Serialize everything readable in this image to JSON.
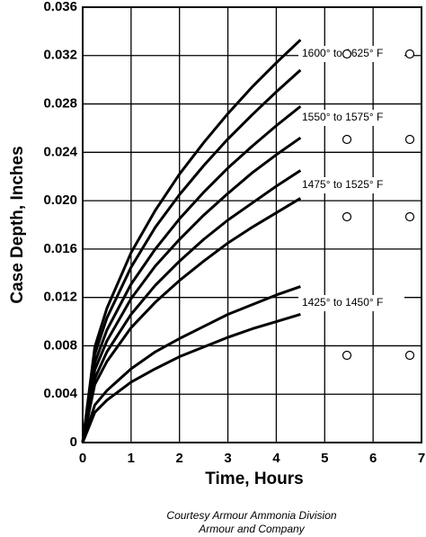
{
  "chart_data": {
    "type": "line",
    "x_label": "Time, Hours",
    "y_label": "Case Depth, Inches",
    "x": [
      0,
      0.25,
      0.5,
      1,
      1.5,
      2,
      2.5,
      3,
      3.5,
      4,
      4.5
    ],
    "series": [
      {
        "color": "#000000",
        "values": [
          0,
          0.0079,
          0.0111,
          0.0157,
          0.0192,
          0.0222,
          0.0248,
          0.0272,
          0.0294,
          0.0314,
          0.0333
        ]
      },
      {
        "color": "#000000",
        "values": [
          0,
          0.0073,
          0.0103,
          0.0145,
          0.0178,
          0.0205,
          0.0229,
          0.0251,
          0.0271,
          0.029,
          0.0308
        ]
      },
      {
        "color": "#000000",
        "values": [
          0,
          0.0066,
          0.0093,
          0.0131,
          0.016,
          0.0185,
          0.0207,
          0.0227,
          0.0245,
          0.0262,
          0.0278
        ]
      },
      {
        "color": "#000000",
        "values": [
          0,
          0.006,
          0.0084,
          0.0119,
          0.0146,
          0.0168,
          0.0188,
          0.0206,
          0.0223,
          0.0238,
          0.0252
        ]
      },
      {
        "color": "#000000",
        "values": [
          0,
          0.0053,
          0.0075,
          0.0106,
          0.013,
          0.015,
          0.0168,
          0.0184,
          0.0198,
          0.0212,
          0.0225
        ]
      },
      {
        "color": "#000000",
        "values": [
          0,
          0.0048,
          0.0067,
          0.0095,
          0.0116,
          0.0134,
          0.015,
          0.0165,
          0.0178,
          0.019,
          0.0202
        ]
      },
      {
        "color": "#000000",
        "values": [
          0,
          0.0031,
          0.0043,
          0.0061,
          0.0075,
          0.0086,
          0.0096,
          0.0106,
          0.0114,
          0.0122,
          0.0129
        ]
      },
      {
        "color": "#000000",
        "values": [
          0,
          0.0025,
          0.0035,
          0.005,
          0.0061,
          0.0071,
          0.0079,
          0.0087,
          0.0094,
          0.01,
          0.0106
        ]
      }
    ],
    "annotations": [
      "1600° to 1625° F",
      "1550° to 1575° F",
      "1475° to 1525° F",
      "1425° to 1450° F"
    ],
    "xlim": [
      0,
      7
    ],
    "xticks": [
      0,
      1,
      2,
      3,
      4,
      5,
      6,
      7
    ],
    "ylim": [
      0,
      0.036
    ],
    "yticks": [
      0,
      0.004,
      0.008,
      0.012,
      0.016,
      {
        "value": 0.02,
        "label": "0.020"
      },
      0.024,
      0.028,
      0.032,
      0.036
    ],
    "grid": true,
    "credits": [
      "Courtesy Armour Ammonia Division",
      "Armour and Company"
    ]
  }
}
